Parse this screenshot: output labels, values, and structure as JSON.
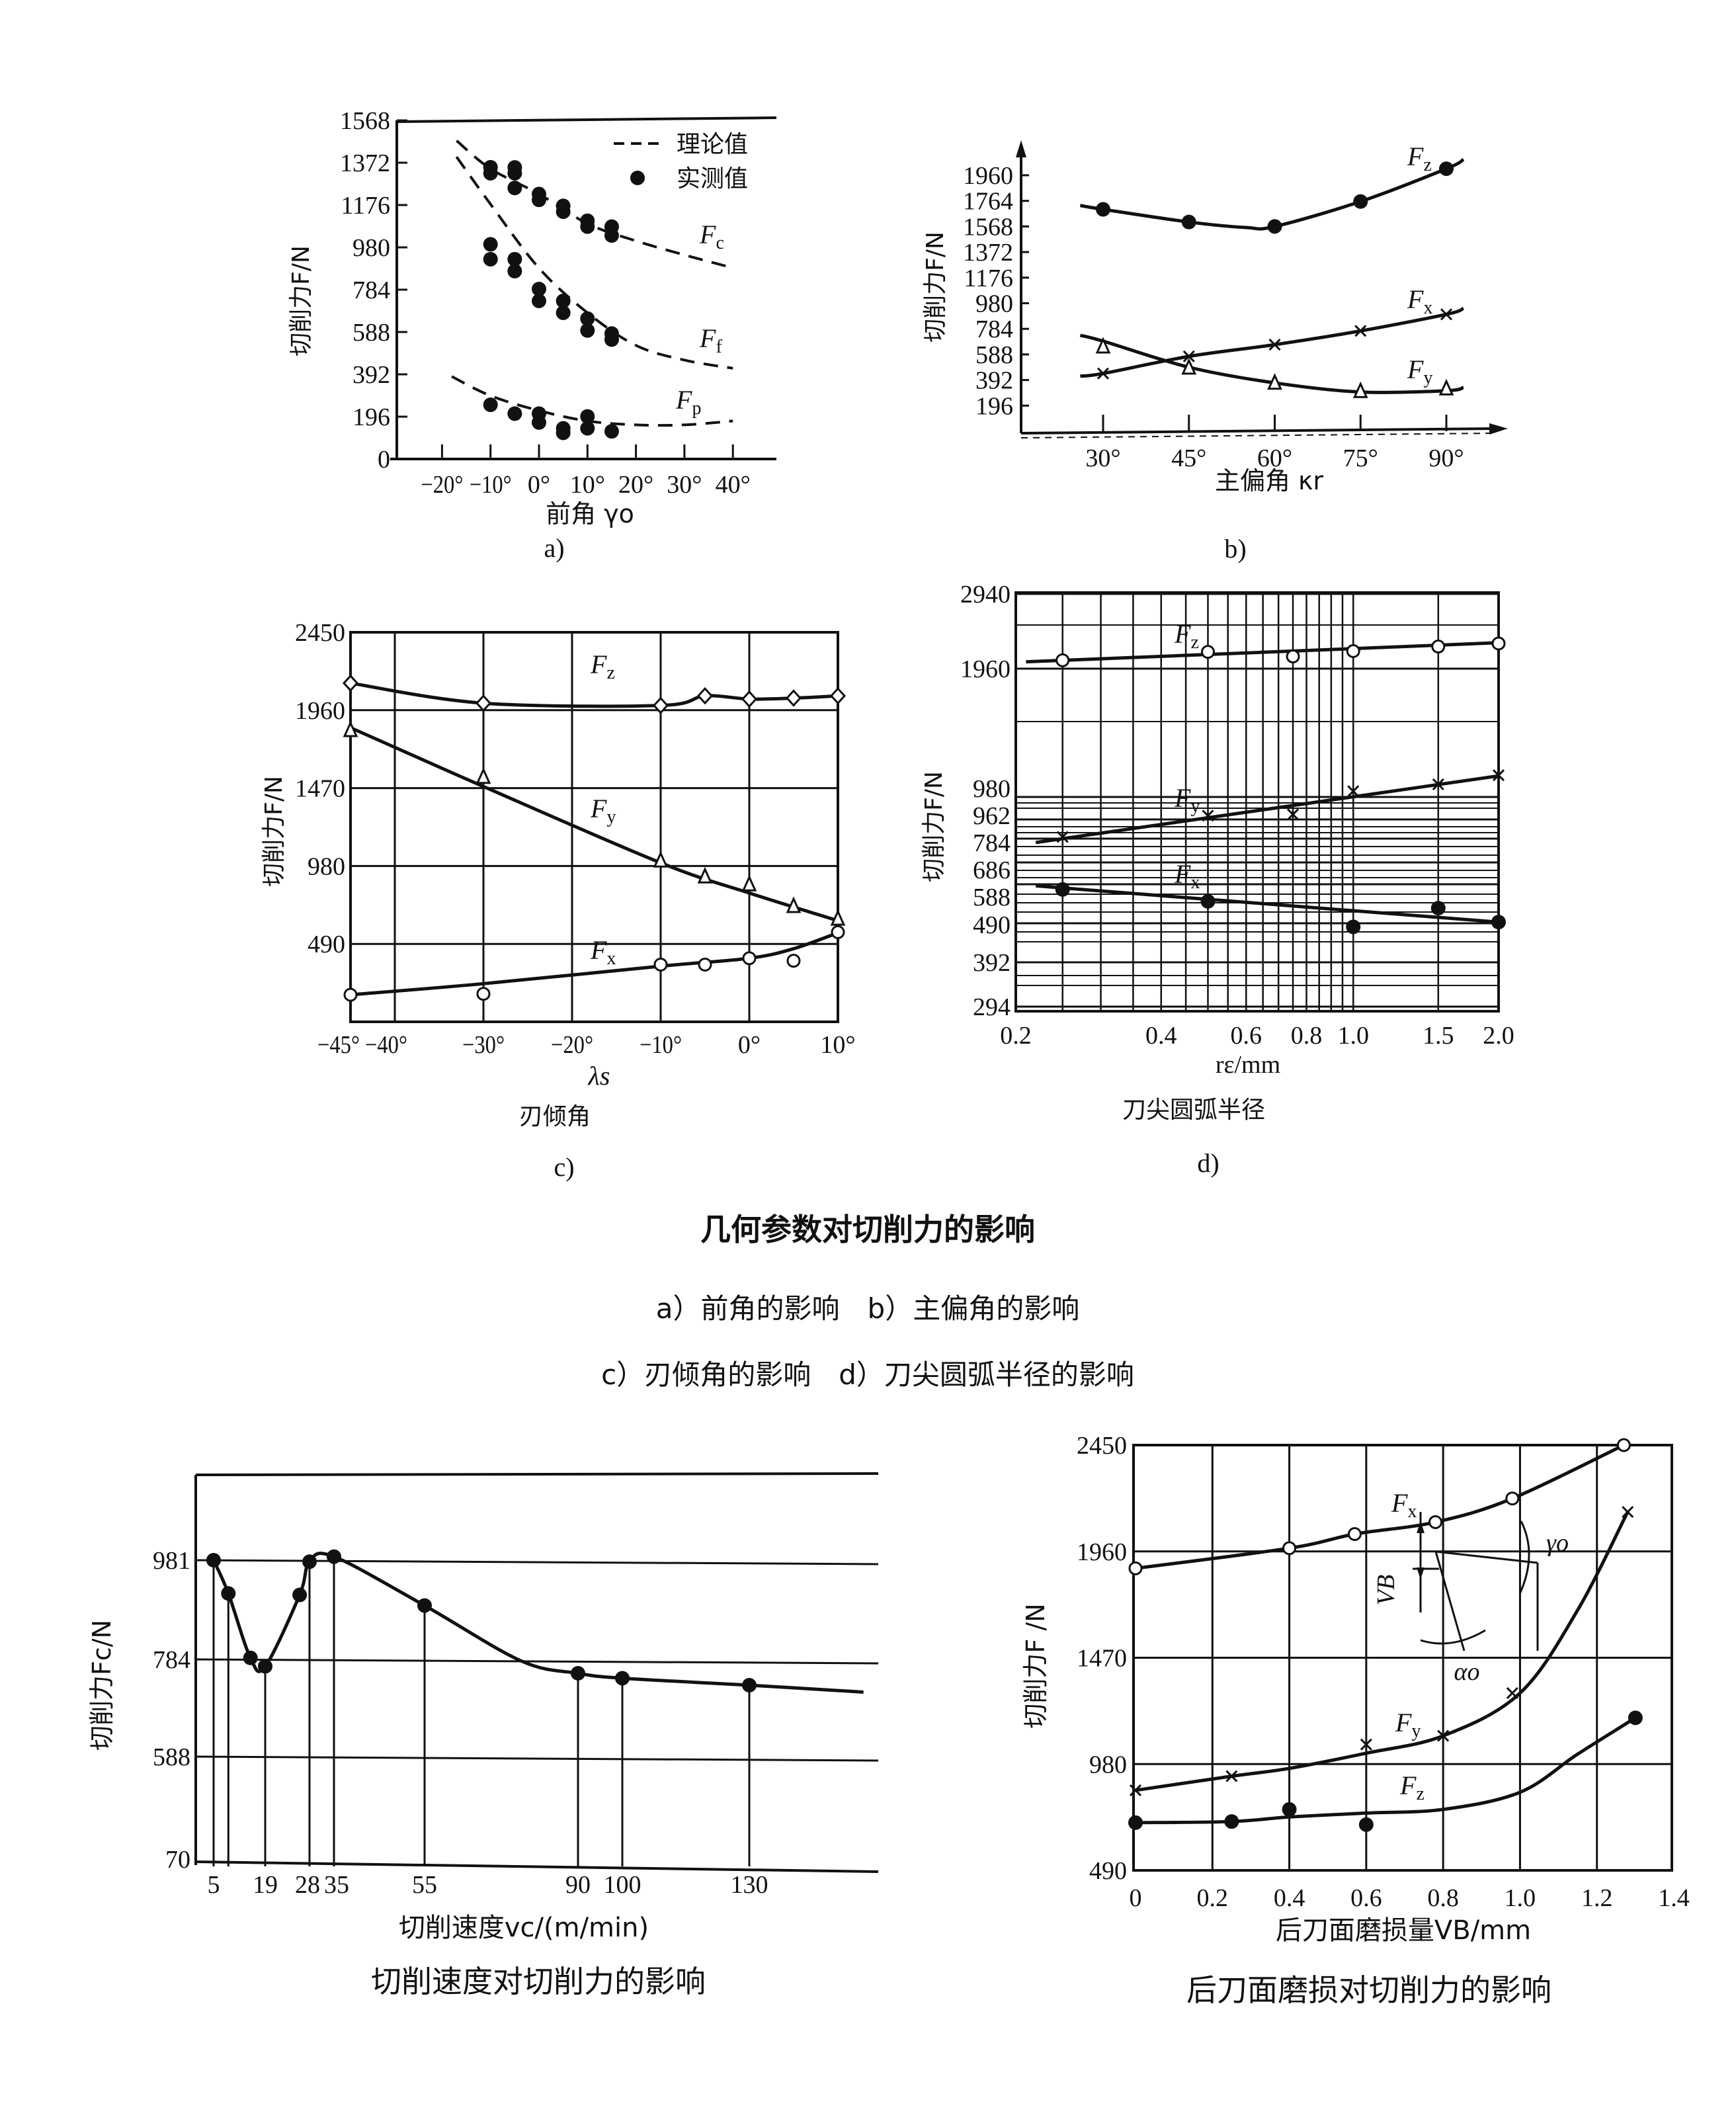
{
  "page": {
    "main_caption": "几何参数对切削力的影响",
    "sub_caption_1": "a）前角的影响　b）主偏角的影响",
    "sub_caption_2": "c）刃倾角的影响　d）刀尖圆弧半径的影响"
  },
  "chart_data": [
    {
      "type": "line",
      "panel_label": "a)",
      "xlabel": "前角 γo",
      "ylabel": "切削力F/N",
      "xlim": [
        -29,
        48
      ],
      "ylim": [
        0,
        1568
      ],
      "x_ticks": [
        -20,
        -10,
        0,
        10,
        20,
        30,
        40
      ],
      "x_tick_labels": [
        "−20°",
        "−10°",
        "0°",
        "10°",
        "20°",
        "30°",
        "40°"
      ],
      "y_ticks": [
        0,
        196,
        392,
        588,
        784,
        980,
        1176,
        1372,
        1568
      ],
      "legend": {
        "placement": "top-right",
        "theory": "理论值",
        "measured": "实测值"
      },
      "series": [
        {
          "label": {
            "main": "F",
            "sub": "c"
          },
          "style": "dashed",
          "curve": {
            "x": [
              -17,
              -10,
              0,
              10,
              20,
              30,
              40
            ],
            "y": [
              1474,
              1344,
              1227,
              1090,
              1010,
              945,
              885
            ]
          },
          "measured": {
            "x": [
              -10,
              -10,
              -5,
              -5,
              -5,
              0,
              0,
              5,
              5,
              10,
              10,
              15,
              15
            ],
            "y": [
              1351,
              1323,
              1350,
              1323,
              1255,
              1227,
              1200,
              1172,
              1145,
              1103,
              1076,
              1076,
              1035
            ]
          }
        },
        {
          "label": {
            "main": "F",
            "sub": "f"
          },
          "style": "dashed",
          "curve": {
            "x": [
              -17,
              -10,
              0,
              10,
              20,
              30,
              40
            ],
            "y": [
              1399,
              1180,
              884,
              677,
              526,
              458,
              420
            ]
          },
          "measured": {
            "x": [
              -10,
              -10,
              -5,
              -5,
              0,
              0,
              5,
              5,
              10,
              10,
              15,
              15
            ],
            "y": [
              994,
              925,
              925,
              870,
              787,
              732,
              732,
              677,
              650,
              595,
              581,
              553
            ]
          }
        },
        {
          "label": {
            "main": "F",
            "sub": "p"
          },
          "style": "dashed",
          "curve": {
            "x": [
              -18,
              -10,
              0,
              10,
              20,
              30,
              40
            ],
            "y": [
              382,
              293,
              224,
              176,
              158,
              158,
              176
            ]
          },
          "measured": {
            "x": [
              -10,
              -5,
              0,
              0,
              5,
              5,
              10,
              10,
              15
            ],
            "y": [
              251,
              210,
              210,
              169,
              142,
              121,
              197,
              142,
              128
            ]
          }
        }
      ]
    },
    {
      "type": "line",
      "panel_label": "b)",
      "xlabel": "主偏角 κr",
      "ylabel": "切削力F/N",
      "xlim": [
        22,
        96
      ],
      "ylim": [
        0,
        2200
      ],
      "x_ticks": [
        30,
        45,
        60,
        75,
        90
      ],
      "x_tick_labels": [
        "30°",
        "45°",
        "60°",
        "75°",
        "90°"
      ],
      "y_ticks": [
        196,
        392,
        588,
        784,
        980,
        1176,
        1372,
        1568,
        1764,
        1960
      ],
      "series": [
        {
          "label": {
            "main": "F",
            "sub": "z"
          },
          "marker": "dot",
          "curve": {
            "x": [
              26,
              30,
              45,
              55,
              60,
              75,
              90,
              93
            ],
            "y": [
              1729,
              1699,
              1602,
              1560,
              1568,
              1759,
              2010,
              2081
            ]
          },
          "x": [
            30,
            45,
            60,
            75,
            90
          ],
          "y": [
            1699,
            1602,
            1568,
            1759,
            2010
          ]
        },
        {
          "label": {
            "main": "F",
            "sub": "x"
          },
          "marker": "cross",
          "curve": {
            "x": [
              26,
              30,
              45,
              60,
              75,
              90,
              93
            ],
            "y": [
              422,
              442,
              573,
              663,
              768,
              895,
              940
            ]
          },
          "x": [
            30,
            45,
            60,
            75,
            90
          ],
          "y": [
            442,
            573,
            663,
            768,
            895
          ]
        },
        {
          "label": {
            "main": "F",
            "sub": "y"
          },
          "marker": "triangle",
          "curve": {
            "x": [
              26,
              30,
              45,
              60,
              75,
              90,
              93
            ],
            "y": [
              734,
              690,
              490,
              370,
              300,
              310,
              335
            ]
          },
          "x": [
            30,
            45,
            60,
            75,
            90
          ],
          "y": [
            643,
            482,
            366,
            302,
            322
          ]
        }
      ]
    },
    {
      "type": "line",
      "panel_label": "c)",
      "subtitle": "刃倾角",
      "xlabel": "λs",
      "ylabel": "切削力F/N",
      "xlim": [
        -45,
        10
      ],
      "ylim": [
        0,
        2450
      ],
      "grid": true,
      "x_ticks": [
        -45,
        -40,
        -30,
        -20,
        -10,
        0,
        10
      ],
      "x_tick_labels": [
        "−45°",
        "−40°",
        "−30°",
        "−20°",
        "−10°",
        "0°",
        "10°"
      ],
      "y_ticks": [
        490,
        980,
        1470,
        1960,
        2450
      ],
      "series": [
        {
          "label": {
            "main": "F",
            "sub": "z"
          },
          "marker": "diamond",
          "curve": {
            "x": [
              -45,
              -30,
              -10,
              -5,
              0,
              5,
              10
            ],
            "y": [
              2130,
              2004,
              1990,
              2050,
              2030,
              2036,
              2050
            ]
          },
          "x": [
            -45,
            -30,
            -10,
            -5,
            0,
            5,
            10
          ],
          "y": [
            2130,
            2004,
            1990,
            2050,
            2030,
            2036,
            2050
          ]
        },
        {
          "label": {
            "main": "F",
            "sub": "y"
          },
          "marker": "triangle",
          "curve": {
            "x": [
              -45,
              -30,
              -10,
              0,
              10
            ],
            "y": [
              1850,
              1480,
              1000,
              810,
              636
            ]
          },
          "x": [
            -45,
            -30,
            -10,
            -5,
            0,
            5,
            10
          ],
          "y": [
            1830,
            1536,
            1010,
            910,
            860,
            724,
            644
          ]
        },
        {
          "label": {
            "main": "F",
            "sub": "x"
          },
          "marker": "circle",
          "curve": {
            "x": [
              -45,
              -30,
              -10,
              0,
              5,
              10
            ],
            "y": [
              170,
              240,
              350,
              400,
              460,
              560
            ]
          },
          "x": [
            -45,
            -30,
            -10,
            -5,
            0,
            5,
            10
          ],
          "y": [
            170,
            176,
            360,
            360,
            400,
            384,
            564
          ]
        }
      ]
    },
    {
      "type": "line",
      "panel_label": "d)",
      "subtitle": "刀尖圆弧半径",
      "xlabel": "rε/mm",
      "ylabel": "切削力F/N",
      "xscale": "log",
      "xlim": [
        0.2,
        2.0
      ],
      "ylim": [
        294,
        2940
      ],
      "grid": true,
      "x_ticks": [
        0.2,
        0.4,
        0.6,
        0.8,
        1.0,
        1.5,
        2.0
      ],
      "x_tick_labels": [
        "0.2",
        "0.4",
        "0.6",
        "0.8",
        "1.0",
        "1.5",
        "2.0"
      ],
      "y_ticks": [
        294,
        392,
        490,
        588,
        686,
        784,
        962,
        980,
        1960,
        2940
      ],
      "series": [
        {
          "label": {
            "main": "F",
            "sub": "z"
          },
          "marker": "circle",
          "curve": {
            "x": [
              0.21,
              2.0
            ],
            "y": [
              2050,
              2300
            ]
          },
          "x": [
            0.25,
            0.5,
            0.75,
            1.0,
            1.5,
            2.0
          ],
          "y": [
            2070,
            2180,
            2120,
            2190,
            2250,
            2290
          ]
        },
        {
          "label": {
            "main": "F",
            "sub": "y"
          },
          "marker": "cross",
          "curve": {
            "x": [
              0.22,
              2.0
            ],
            "y": [
              768,
              1141
            ]
          },
          "x": [
            0.25,
            0.5,
            0.75,
            1.0,
            1.5,
            2.0
          ],
          "y": [
            800,
            965,
            966,
            1024,
            1076,
            1146
          ]
        },
        {
          "label": {
            "main": "F",
            "sub": "x"
          },
          "marker": "dot",
          "curve": {
            "x": [
              0.22,
              2.0
            ],
            "y": [
              584,
              493
            ]
          },
          "x": [
            0.25,
            0.5,
            1.0,
            1.5,
            2.0
          ],
          "y": [
            575,
            545,
            481,
            528,
            493
          ]
        }
      ]
    },
    {
      "type": "line",
      "title": "切削速度对切削力的影响",
      "xlabel": "切削速度vc/(m/min)",
      "ylabel": "切削力Fc/N",
      "xlim": [
        0,
        160
      ],
      "y_ticks": [
        70,
        588,
        784,
        981
      ],
      "x_ticks": [
        5,
        19,
        28,
        35,
        55,
        90,
        100,
        130
      ],
      "x_tick_labels": [
        "5",
        "19",
        "28",
        "35",
        "55",
        "90",
        "100",
        "130"
      ],
      "drop_lines_x": [
        5,
        9,
        19,
        28,
        35,
        55,
        90,
        100,
        130
      ],
      "series": [
        {
          "name": "Fc",
          "marker": "dot",
          "curve": {
            "x": [
              5,
              9,
              15,
              19,
              26,
              28,
              35,
              55,
              77,
              90,
              100,
              130,
              158
            ],
            "y": [
              981,
              915,
              787,
              770,
              912,
              978,
              988,
              891,
              781,
              756,
              746,
              732,
              718
            ]
          },
          "x": [
            5,
            9,
            15,
            19,
            26,
            28,
            35,
            55,
            90,
            100,
            130
          ],
          "y": [
            981,
            915,
            787,
            770,
            912,
            978,
            988,
            891,
            756,
            746,
            732
          ]
        }
      ]
    },
    {
      "type": "line",
      "title": "后刀面磨损对切削力的影响",
      "xlabel": "后刀面磨损量VB/mm",
      "ylabel": "切削力F /N",
      "xlim": [
        0,
        1.4
      ],
      "ylim": [
        490,
        2450
      ],
      "grid": true,
      "x_ticks": [
        0,
        0.2,
        0.4,
        0.6,
        0.8,
        1.0,
        1.2,
        1.4
      ],
      "x_tick_labels": [
        "0",
        "0.2",
        "0.4",
        "0.6",
        "0.8",
        "1.0",
        "1.2",
        "1.4"
      ],
      "y_ticks": [
        490,
        980,
        1470,
        1960,
        2450
      ],
      "annotations": {
        "vb": "VB",
        "gamma": "γo",
        "alpha": "αo"
      },
      "series": [
        {
          "label": {
            "main": "F",
            "sub": "x"
          },
          "marker": "circle",
          "curve": {
            "x": [
              0,
              0.4,
              0.57,
              0.78,
              0.98,
              1.27
            ],
            "y": [
              1882,
              1975,
              2040,
              2095,
              2204,
              2450
            ]
          },
          "x": [
            0,
            0.4,
            0.57,
            0.78,
            0.98,
            1.27
          ],
          "y": [
            1882,
            1975,
            2040,
            2095,
            2204,
            2450
          ]
        },
        {
          "label": {
            "main": "F",
            "sub": "y"
          },
          "marker": "cross",
          "curve": {
            "x": [
              0,
              0.25,
              0.4,
              0.6,
              0.8,
              1.0,
              1.15,
              1.28
            ],
            "y": [
              859,
              924,
              960,
              1030,
              1110,
              1307,
              1690,
              2142
            ]
          },
          "x": [
            0,
            0.25,
            0.6,
            0.8,
            0.98,
            1.28
          ],
          "y": [
            859,
            924,
            1070,
            1110,
            1307,
            2142
          ]
        },
        {
          "label": {
            "main": "F",
            "sub": "z"
          },
          "marker": "dot",
          "curve": {
            "x": [
              0,
              0.25,
              0.4,
              0.6,
              0.8,
              1.0,
              1.15,
              1.3
            ],
            "y": [
              710,
              715,
              736,
              754,
              771,
              850,
              1026,
              1193
            ]
          },
          "x": [
            0,
            0.25,
            0.4,
            0.6,
            1.3
          ],
          "y": [
            710,
            715,
            771,
            701,
            1193
          ]
        }
      ]
    }
  ]
}
